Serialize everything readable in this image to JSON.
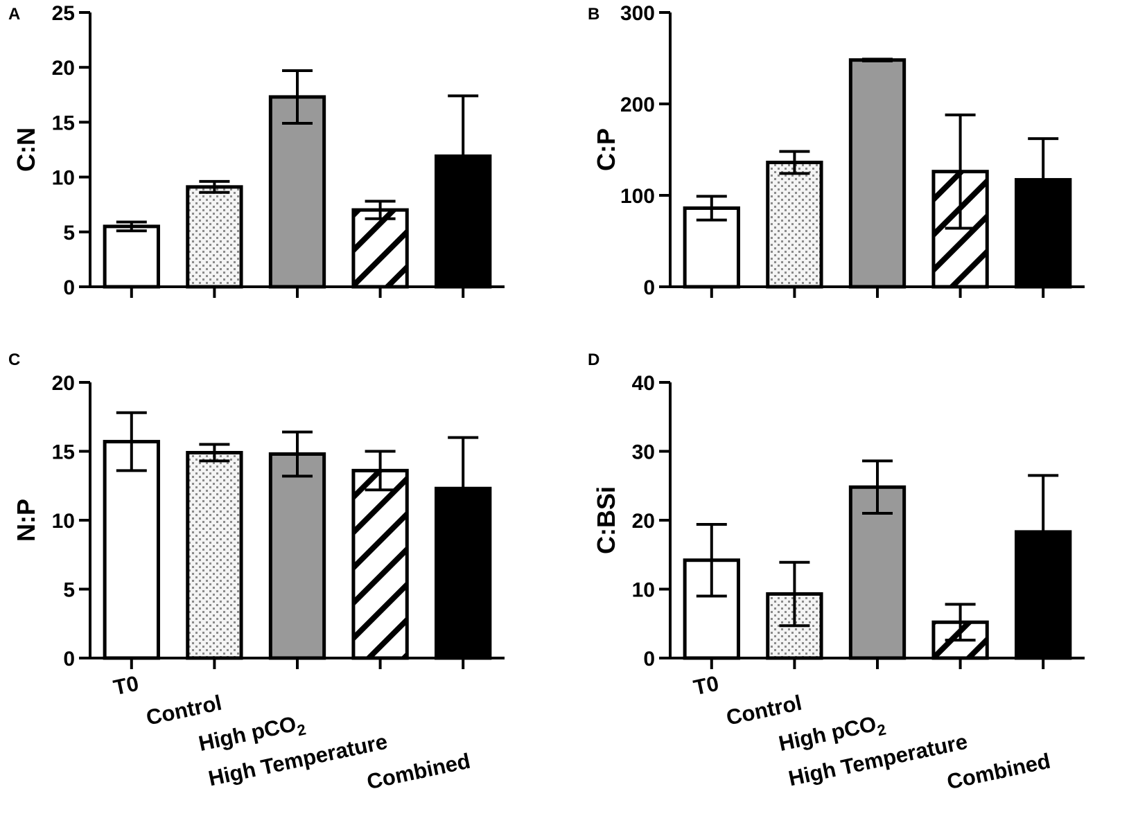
{
  "figure": {
    "style": {
      "fills": {
        "T0": "#ffffff",
        "Control": "#e8e8e8",
        "High pCO2": "#999999",
        "High Temperature": "hatch",
        "Combined": "#000000"
      },
      "stroke": "#000000"
    },
    "categories": [
      {
        "parts": [
          {
            "t": "T0"
          }
        ]
      },
      {
        "parts": [
          {
            "t": "Control"
          }
        ]
      },
      {
        "parts": [
          {
            "t": "High pCO"
          },
          {
            "t": "2",
            "sub": true
          }
        ]
      },
      {
        "parts": [
          {
            "t": "High Temperature"
          }
        ]
      },
      {
        "parts": [
          {
            "t": "Combined"
          }
        ]
      }
    ]
  },
  "chart_data": [
    {
      "panel": "A",
      "type": "bar",
      "ylabel": "C:N",
      "categories": [
        "T0",
        "Control",
        "High pCO2",
        "High Temperature",
        "Combined"
      ],
      "values": [
        5.5,
        9.1,
        17.3,
        7.0,
        11.9
      ],
      "errors": [
        0.4,
        0.5,
        2.4,
        0.8,
        5.5
      ],
      "ylim": [
        0,
        25
      ],
      "yticks": [
        0,
        5,
        10,
        15,
        20,
        25
      ],
      "show_xlabels": false
    },
    {
      "panel": "B",
      "type": "bar",
      "ylabel": "C:P",
      "categories": [
        "T0",
        "Control",
        "High pCO2",
        "High Temperature",
        "Combined"
      ],
      "values": [
        86,
        136,
        248,
        126,
        117
      ],
      "errors": [
        13,
        12,
        1,
        62,
        45
      ],
      "ylim": [
        0,
        300
      ],
      "yticks": [
        0,
        100,
        200,
        300
      ],
      "show_xlabels": false
    },
    {
      "panel": "C",
      "type": "bar",
      "ylabel": "N:P",
      "categories": [
        "T0",
        "Control",
        "High pCO2",
        "High Temperature",
        "Combined"
      ],
      "values": [
        15.7,
        14.9,
        14.8,
        13.6,
        12.3
      ],
      "errors": [
        2.1,
        0.6,
        1.6,
        1.4,
        3.7
      ],
      "ylim": [
        0,
        20
      ],
      "yticks": [
        0,
        5,
        10,
        15,
        20
      ],
      "show_xlabels": true
    },
    {
      "panel": "D",
      "type": "bar",
      "ylabel": "C:BSi",
      "categories": [
        "T0",
        "Control",
        "High pCO2",
        "High Temperature",
        "Combined"
      ],
      "values": [
        14.2,
        9.3,
        24.8,
        5.2,
        18.3
      ],
      "errors": [
        5.2,
        4.6,
        3.8,
        2.6,
        8.2
      ],
      "ylim": [
        0,
        40
      ],
      "yticks": [
        0,
        10,
        20,
        30,
        40
      ],
      "show_xlabels": true
    }
  ]
}
